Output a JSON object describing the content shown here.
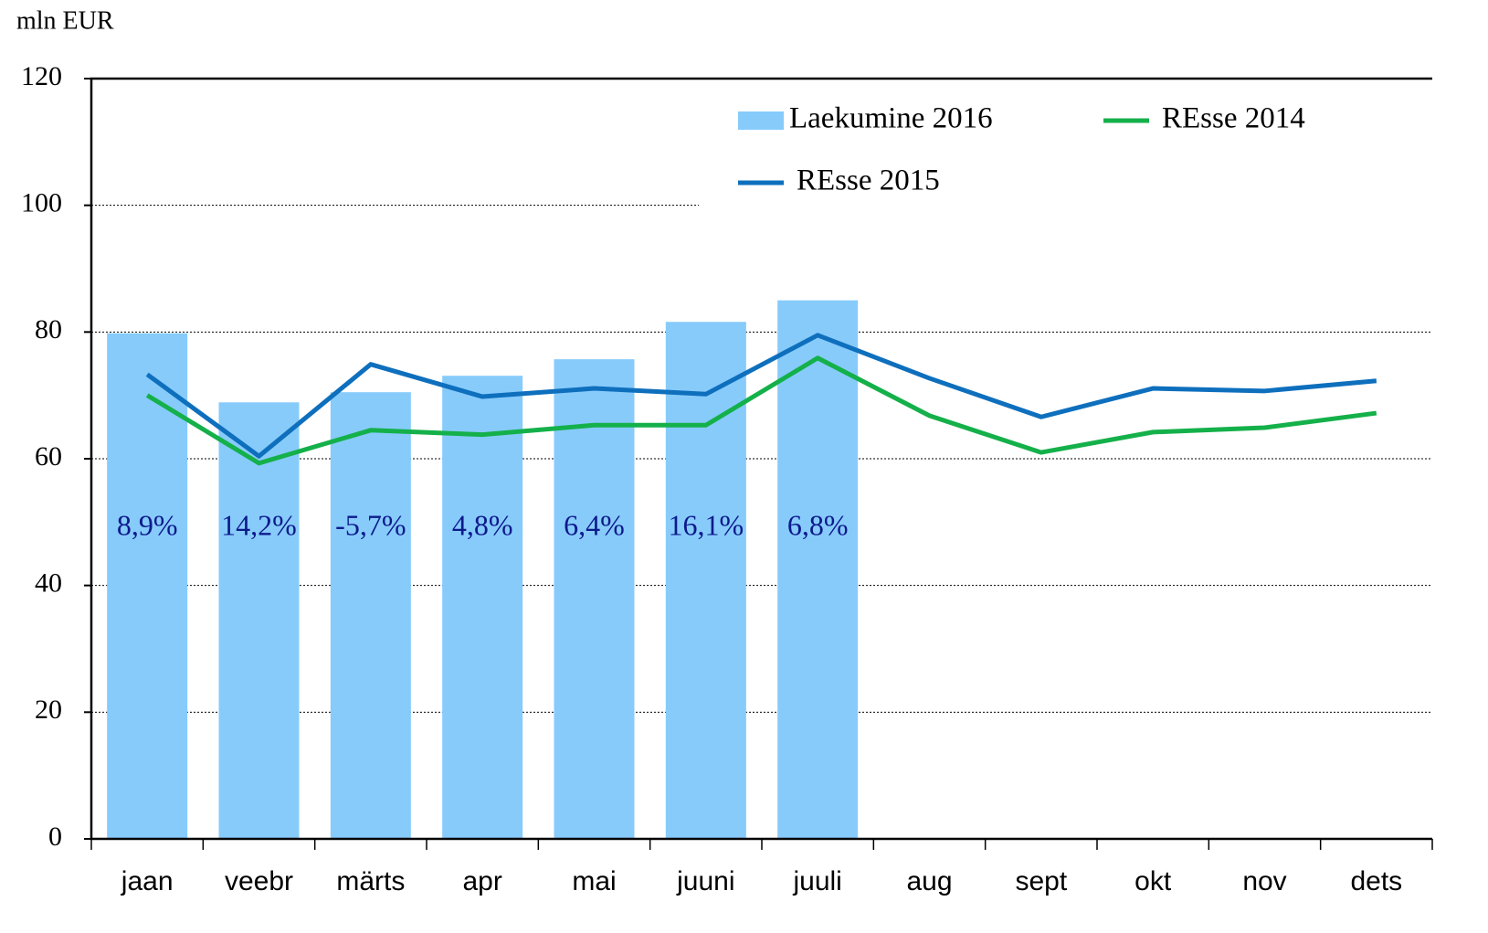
{
  "chart_data": {
    "type": "bar-line",
    "y_axis_label": "mln EUR",
    "categories": [
      "jaan",
      "veebr",
      "märts",
      "apr",
      "mai",
      "juuni",
      "juuli",
      "aug",
      "sept",
      "okt",
      "nov",
      "dets"
    ],
    "series": [
      {
        "name": "Laekumine 2016",
        "kind": "bar",
        "color": "#87cbfb",
        "values": [
          79.8,
          68.9,
          70.5,
          73.1,
          75.7,
          81.6,
          85.0,
          null,
          null,
          null,
          null,
          null
        ]
      },
      {
        "name": "REsse 2014",
        "kind": "line",
        "color": "#14b04a",
        "values": [
          70.0,
          59.3,
          64.5,
          63.8,
          65.3,
          65.3,
          75.9,
          66.8,
          61.0,
          64.2,
          64.9,
          67.2
        ]
      },
      {
        "name": "REsse 2015",
        "kind": "line",
        "color": "#0e6fbd",
        "values": [
          73.3,
          60.4,
          74.9,
          69.8,
          71.1,
          70.2,
          79.5,
          72.7,
          66.6,
          71.1,
          70.7,
          72.3
        ]
      }
    ],
    "bar_annotations": [
      "8,9%",
      "14,2%",
      "-5,7%",
      "4,8%",
      "6,4%",
      "16,1%",
      "6,8%"
    ],
    "annotation_color": "#0d1a8c",
    "ylim": [
      0,
      120
    ],
    "yticks": [
      0,
      20,
      40,
      60,
      80,
      100,
      120
    ],
    "grid": true,
    "legend": "upper right"
  }
}
